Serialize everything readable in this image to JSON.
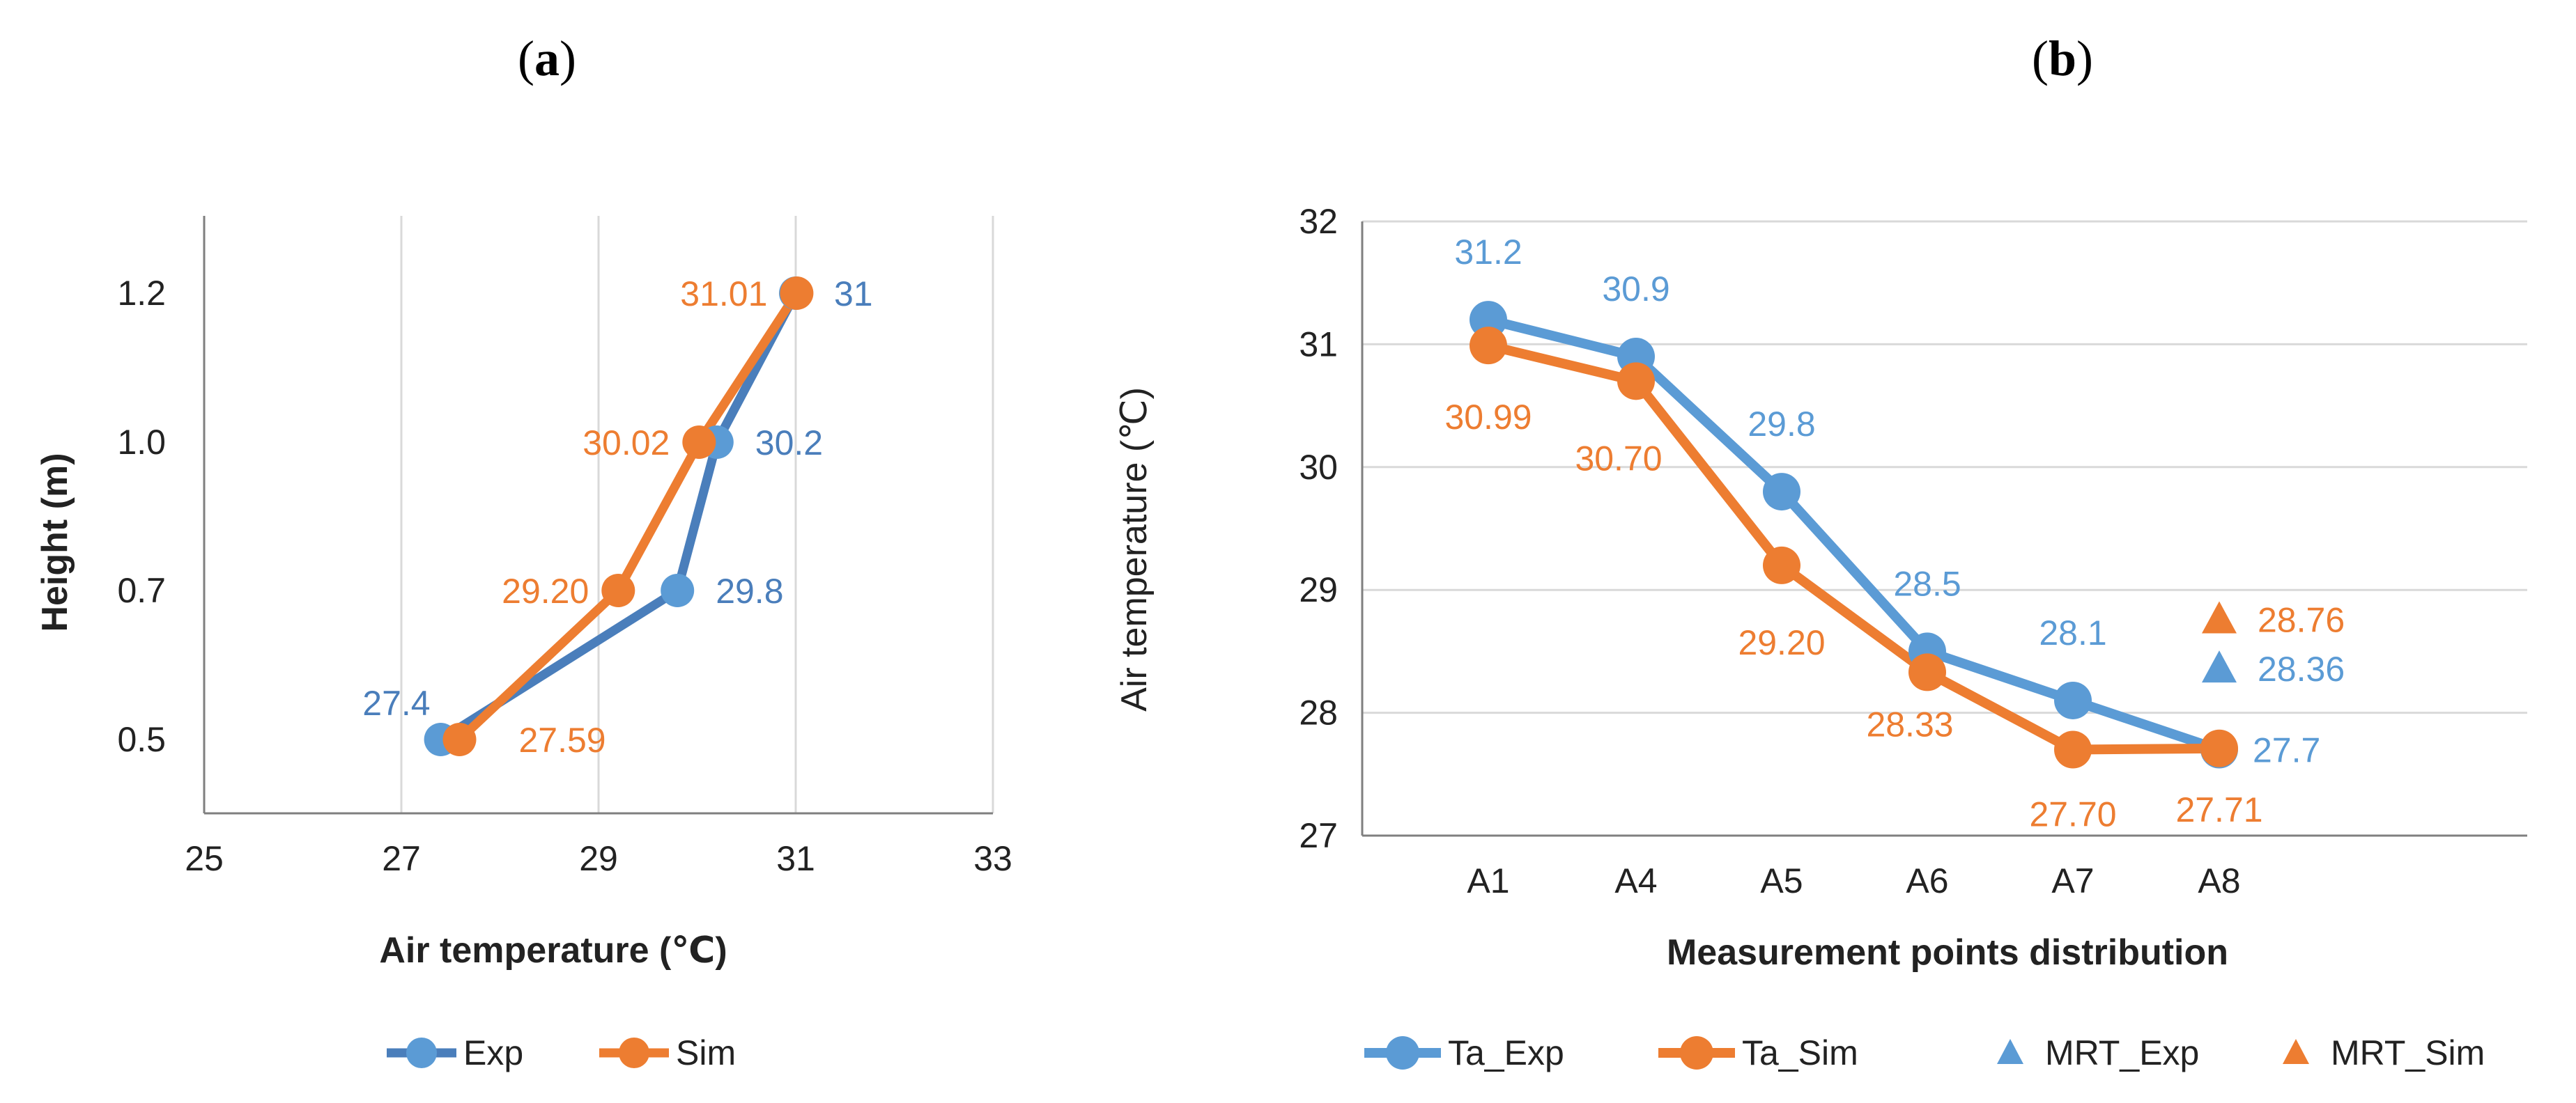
{
  "colors": {
    "exp": "#4A7EBB",
    "expMarker": "#5B9BD5",
    "sim": "#ED7D31",
    "grid": "#D9D9D9",
    "axis": "#7F7F7F",
    "text": "#222222"
  },
  "chart_data": [
    {
      "panel": "a",
      "panel_label": "a",
      "type": "line",
      "xlabel": "Air temperature (℃)",
      "ylabel": "Height (m)",
      "xlim": [
        25,
        33
      ],
      "xticks": [
        "25",
        "27",
        "29",
        "31",
        "33"
      ],
      "ycategories": [
        "0.5",
        "0.7",
        "1.0",
        "1.2"
      ],
      "grid": "vertical",
      "legend_position": "bottom",
      "series": [
        {
          "name": "Exp",
          "color_key": "exp",
          "x": [
            27.4,
            29.8,
            30.2,
            31.0
          ],
          "labels": [
            "27.4",
            "29.8",
            "30.2",
            "31"
          ]
        },
        {
          "name": "Sim",
          "color_key": "sim",
          "x": [
            27.59,
            29.2,
            30.02,
            31.01
          ],
          "labels": [
            "27.59",
            "29.20",
            "30.02",
            "31.01"
          ]
        }
      ]
    },
    {
      "panel": "b",
      "panel_label": "b",
      "type": "line",
      "xlabel": "Measurement points distribution",
      "ylabel": "Air temperature (℃)",
      "ylim": [
        27,
        32
      ],
      "yticks": [
        "27",
        "28",
        "29",
        "30",
        "31",
        "32"
      ],
      "categories": [
        "A1",
        "A4",
        "A5",
        "A6",
        "A7",
        "A8"
      ],
      "grid": "horizontal",
      "legend_position": "bottom",
      "series": [
        {
          "name": "Ta_Exp",
          "color_key": "expMarker",
          "values": [
            31.2,
            30.9,
            29.8,
            28.5,
            28.1,
            27.7
          ],
          "labels": [
            "31.2",
            "30.9",
            "29.8",
            "28.5",
            "28.1",
            "27.7"
          ]
        },
        {
          "name": "Ta_Sim",
          "color_key": "sim",
          "values": [
            30.99,
            30.7,
            29.2,
            28.33,
            27.7,
            27.71
          ],
          "labels": [
            "30.99",
            "30.70",
            "29.20",
            "28.33",
            "27.70",
            "27.71"
          ]
        }
      ],
      "points": [
        {
          "name": "MRT_Exp",
          "color_key": "expMarker",
          "category": "A8",
          "value": 28.36,
          "label": "28.36"
        },
        {
          "name": "MRT_Sim",
          "color_key": "sim",
          "category": "A8",
          "value": 28.76,
          "label": "28.76"
        }
      ]
    }
  ]
}
